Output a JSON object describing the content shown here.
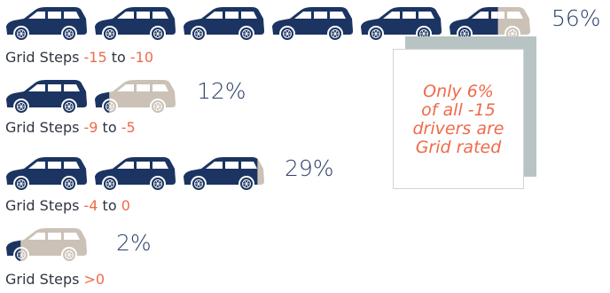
{
  "chart_data": {
    "type": "pictograph",
    "rows": [
      {
        "label_prefix": "Grid Steps ",
        "from": "-15",
        "joiner": " to ",
        "to": "-10",
        "percent_label": "56%",
        "value": 56
      },
      {
        "label_prefix": "Grid Steps ",
        "from": "-9",
        "joiner": " to ",
        "to": "-5",
        "percent_label": "12%",
        "value": 12
      },
      {
        "label_prefix": "Grid Steps ",
        "from": "-4",
        "joiner": " to ",
        "to": "0",
        "percent_label": "29%",
        "value": 29
      },
      {
        "label_prefix": "Grid Steps ",
        "from": ">0",
        "joiner": "",
        "to": "",
        "percent_label": "2%",
        "value": 2
      }
    ],
    "unit_value": 10,
    "icon": "suv-icon",
    "colors": {
      "filled": "#1b3461",
      "empty": "#cbc1b6",
      "accent": "#ef6a4a",
      "text": "#2f3541"
    }
  },
  "callout": {
    "lines": [
      "Only 6%",
      "of all -15",
      "drivers are",
      "Grid rated"
    ]
  }
}
